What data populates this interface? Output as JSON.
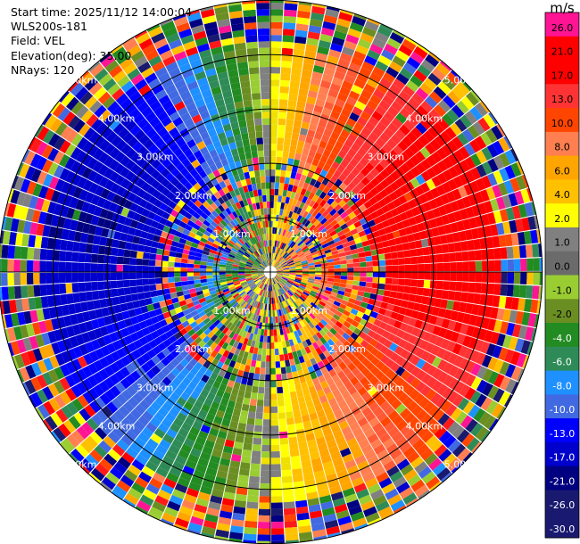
{
  "header": {
    "start_time": "Start time: 2025/11/12 14:00:04",
    "instrument": "WLS200s-181",
    "field": "Field: VEL",
    "elevation": "Elevation(deg): 35.00",
    "nrays": "NRays: 120"
  },
  "colorbar": {
    "unit": "m/s",
    "ticks": [
      "26.0",
      "21.0",
      "17.0",
      "13.0",
      "10.0",
      "8.0",
      "6.0",
      "4.0",
      "2.0",
      "1.0",
      "0.0",
      "-1.0",
      "-2.0",
      "-4.0",
      "-6.0",
      "-8.0",
      "-10.0",
      "-13.0",
      "-17.0",
      "-21.0",
      "-26.0",
      "-30.0"
    ],
    "colors": [
      "#ff1493",
      "#ff2a7f",
      "#ff0000",
      "#ff1a1a",
      "#ff3333",
      "#ff4500",
      "#ff5a36",
      "#ff7f50",
      "#ffa500",
      "#ffc000",
      "#ffff00",
      "#f0e000",
      "#808080",
      "#6b6b6b",
      "#9acd32",
      "#8db52c",
      "#6b8e23",
      "#228b22",
      "#2e8b57",
      "#1e90ff",
      "#4169e1",
      "#0000ff",
      "#0000cd",
      "#000080",
      "#191970"
    ]
  },
  "chart_data": {
    "type": "heatmap",
    "projection": "polar PPI",
    "field": "VEL",
    "units": "m/s",
    "elevation_deg": 35.0,
    "n_rays": 120,
    "range_rings_km": [
      1.0,
      2.0,
      3.0,
      4.0,
      5.0
    ],
    "ring_labels": [
      "1.00km",
      "2.00km",
      "3.00km",
      "4.00km",
      "5.00km"
    ],
    "max_range_km": 5.75,
    "color_scale": [
      -30.0,
      26.0
    ],
    "pattern_note": "positive (red/orange) radial velocities east, negative (blue) west; noisy speckle beyond 4.5 km and near centre"
  }
}
